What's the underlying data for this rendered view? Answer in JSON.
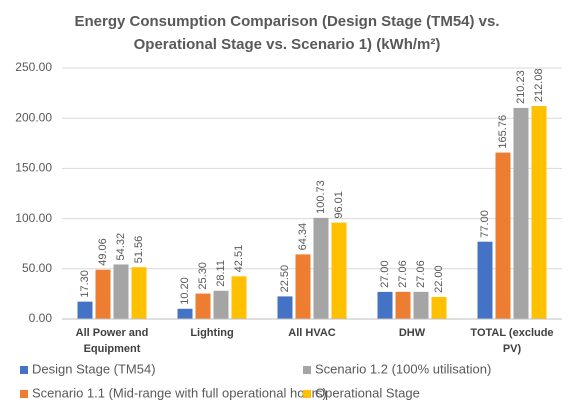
{
  "chart_data": {
    "type": "bar",
    "title": "Energy Consumption Comparison (Design Stage (TM54) vs. Operational Stage vs. Scenario 1) (kWh/m²)",
    "categories": [
      "All Power and Equipment",
      "Lighting",
      "All HVAC",
      "DHW",
      "TOTAL (exclude PV)"
    ],
    "series": [
      {
        "name": "Design Stage (TM54)",
        "color": "#4472c4",
        "values": [
          17.3,
          10.2,
          22.5,
          27,
          77
        ],
        "value_labels": [
          "17.30",
          "10.20",
          "22.50",
          "27.00",
          "77.00"
        ]
      },
      {
        "name": "Scenario 1.1 (Mid-range with full operational hours)",
        "color": "#ed7d31",
        "values": [
          49.06,
          25.3,
          64.34,
          27.06,
          165.76
        ],
        "value_labels": [
          "49.06",
          "25.30",
          "64.34",
          "27.06",
          "165.76"
        ]
      },
      {
        "name": "Scenario 1.2 (100% utilisation)",
        "color": "#a5a5a5",
        "values": [
          54.32,
          28.11,
          100.73,
          27.06,
          210.23
        ],
        "value_labels": [
          "54.32",
          "28.11",
          "100.73",
          "27.06",
          "210.23"
        ]
      },
      {
        "name": "Operational Stage",
        "color": "#ffc000",
        "values": [
          51.56,
          42.51,
          96.01,
          22,
          212.08
        ],
        "value_labels": [
          "51.56",
          "42.51",
          "96.01",
          "22.00",
          "212.08"
        ]
      }
    ],
    "ylim": [
      0,
      250
    ],
    "yticks": [
      {
        "value": 0,
        "label": "0.00"
      },
      {
        "value": 50,
        "label": "50.00"
      },
      {
        "value": 100,
        "label": "100.00"
      },
      {
        "value": 150,
        "label": "150.00"
      },
      {
        "value": 200,
        "label": "200.00"
      },
      {
        "value": 250,
        "label": "250.00"
      }
    ],
    "grid": true,
    "legend": "bottom"
  }
}
